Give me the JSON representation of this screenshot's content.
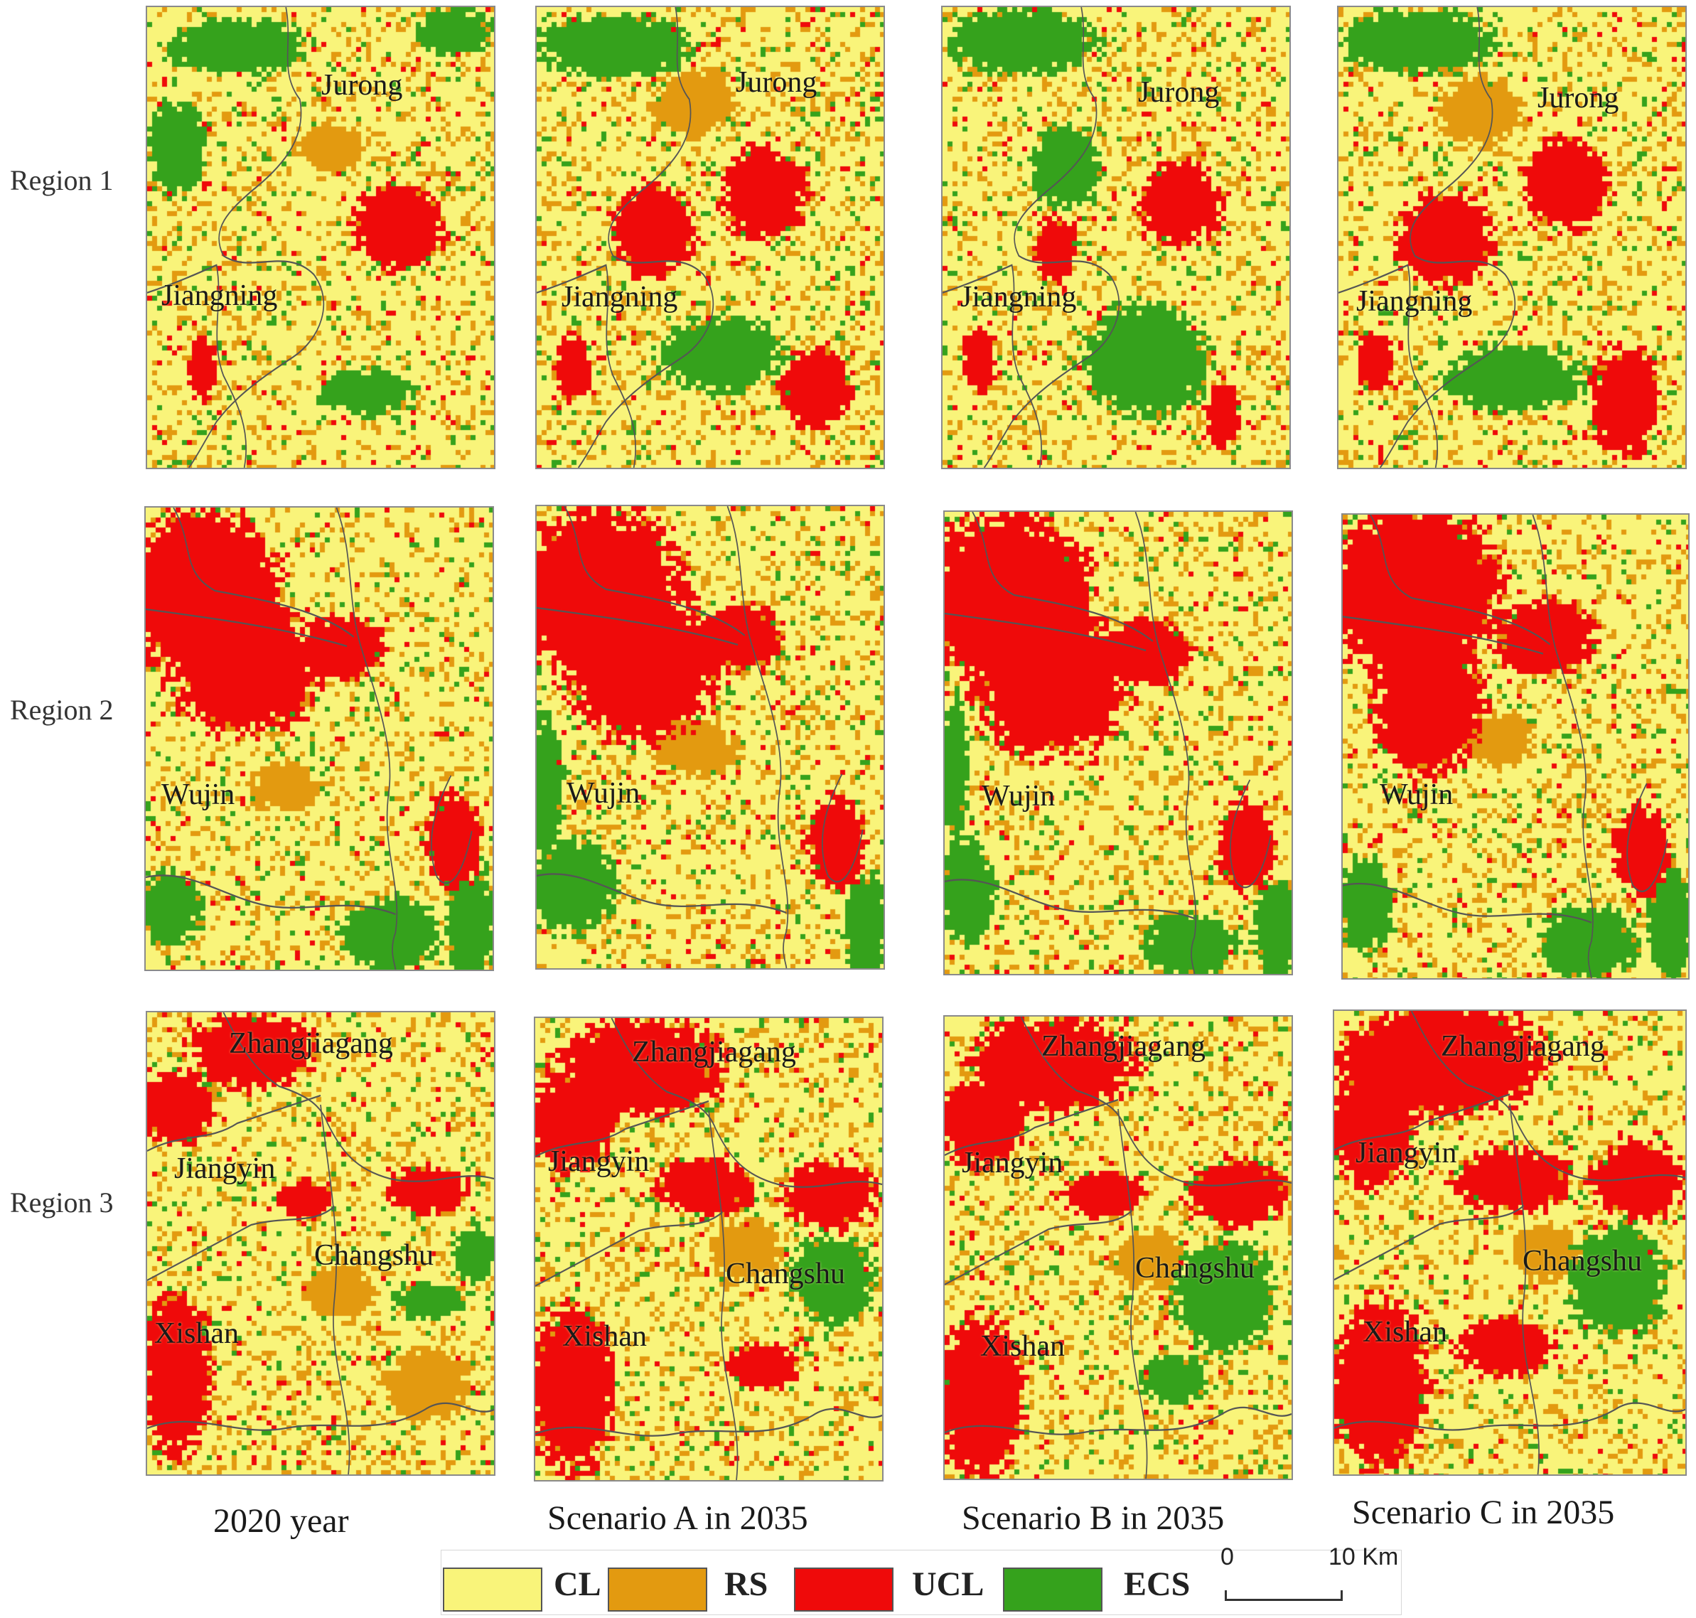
{
  "row_labels": [
    "Region 1",
    "Region 2",
    "Region 3"
  ],
  "column_labels": [
    "2020 year",
    "Scenario A in 2035",
    "Scenario B in 2035",
    "Scenario C in 2035"
  ],
  "place_names": {
    "region1": [
      "Jurong",
      "Jiangning"
    ],
    "region2": [
      "Wujin"
    ],
    "region3": [
      "Zhangjiagang",
      "Jiangyin",
      "Changshu",
      "Xishan"
    ]
  },
  "legend": {
    "items": [
      {
        "code": "CL",
        "color": "#f9f47a"
      },
      {
        "code": "RS",
        "color": "#e39a10"
      },
      {
        "code": "UCL",
        "color": "#ef0a0a"
      },
      {
        "code": "ECS",
        "color": "#35a21c"
      }
    ],
    "scale_start": "0",
    "scale_end": "10 Km"
  }
}
